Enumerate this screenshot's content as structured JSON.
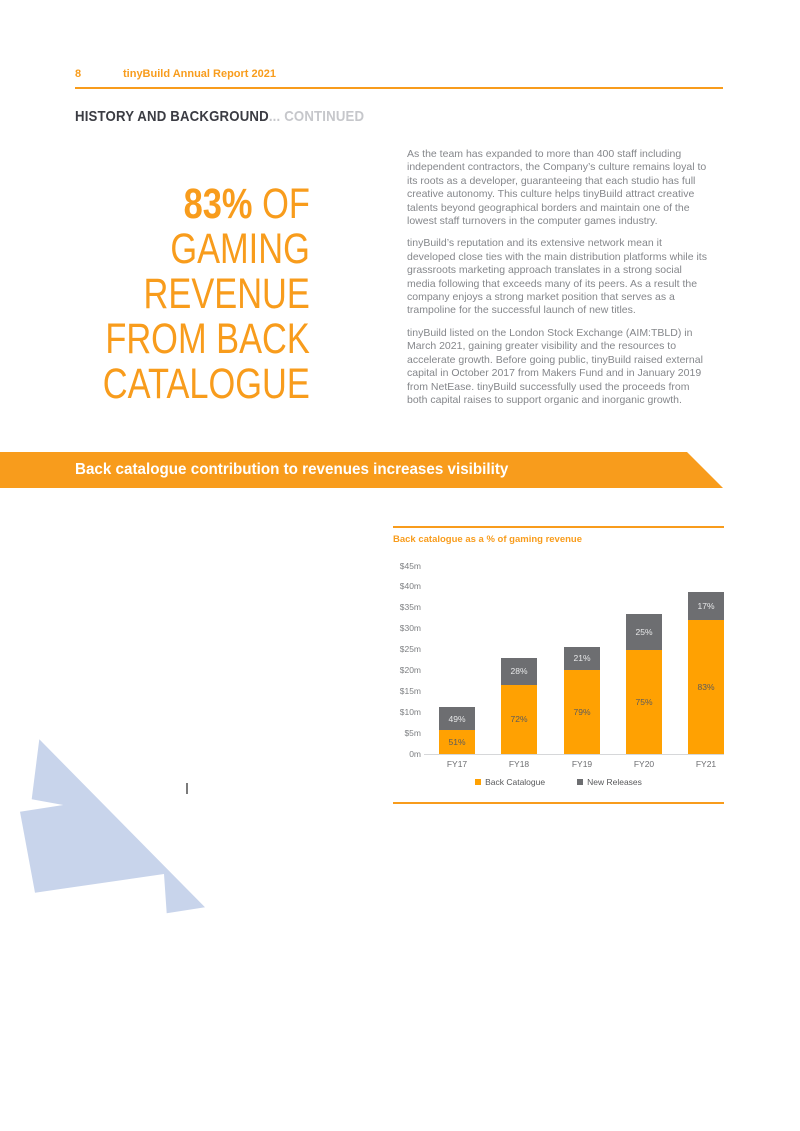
{
  "colors": {
    "orange": "#F89C1C",
    "bar_orange": "#FFA102",
    "bar_gray": "#6D6E71",
    "dark_text": "#3B3C43",
    "light_text": "#C6C7CB",
    "body_text": "#85878B",
    "shape_blue": "#C8D4EB"
  },
  "header": {
    "page_number": "8",
    "title": "tinyBuild Annual Report 2021"
  },
  "section": {
    "title": "HISTORY AND BACKGROUND",
    "suffix": "... CONTINUED"
  },
  "headline": {
    "stat": "83%",
    "stat_suffix": " OF",
    "lines": [
      "GAMING",
      "REVENUE",
      "FROM BACK",
      "CATALOGUE"
    ]
  },
  "body": {
    "p1": "As the team has expanded to more than 400 staff including independent contractors, the Company’s culture remains loyal to its roots as a developer, guaranteeing that each studio has full creative autonomy. This culture helps tinyBuild attract creative talents beyond geographical borders and maintain one of the lowest staff turnovers in the computer games industry.",
    "p2": "tinyBuild’s reputation and its extensive network mean it developed close ties with the main distribution platforms while its grassroots marketing approach translates in a strong social media following that exceeds many of its peers. As a result the company enjoys a strong market position that serves as a trampoline for the successful launch of new titles.",
    "p3": "tinyBuild listed on the London Stock Exchange (AIM:TBLD) in March 2021, gaining greater visibility and the resources to accelerate growth. Before going public, tinyBuild raised external capital in October 2017 from Makers Fund and in January 2019 from NetEase. tinyBuild successfully used the proceeds from both capital raises to support organic and inorganic growth."
  },
  "banner": {
    "text": "Back catalogue contribution to revenues increases visibility"
  },
  "chart_data": {
    "type": "bar",
    "stacked": true,
    "title": "Back catalogue as a % of gaming revenue",
    "categories": [
      "FY17",
      "FY18",
      "FY19",
      "FY20",
      "FY21"
    ],
    "series": [
      {
        "name": "Back Catalogue",
        "color": "#FFA102",
        "label_color": "#5A5B5E",
        "values_m": [
          5.7,
          16.6,
          20.2,
          25.0,
          32.0
        ],
        "segment_labels": [
          "51%",
          "72%",
          "79%",
          "75%",
          "83%"
        ]
      },
      {
        "name": "New Releases",
        "color": "#6D6E71",
        "label_color": "#E8E9EA",
        "values_m": [
          5.5,
          6.4,
          5.4,
          8.5,
          6.8
        ],
        "segment_labels": [
          "49%",
          "28%",
          "21%",
          "25%",
          "17%"
        ]
      }
    ],
    "totals_m": [
      11.2,
      23.0,
      25.6,
      33.5,
      38.8
    ],
    "y_ticks": [
      "$45m",
      "$40m",
      "$35m",
      "$30m",
      "$25m",
      "$20m",
      "$15m",
      "$10m",
      "$5m",
      "0m"
    ],
    "ylim_m": [
      0,
      45
    ],
    "xlabel": "",
    "ylabel": "",
    "gridlines": false,
    "legend_position": "bottom"
  }
}
